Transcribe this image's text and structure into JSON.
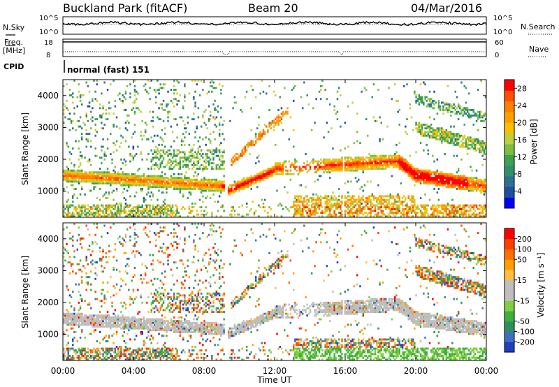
{
  "header": {
    "title": "Buckland Park (fitACF)",
    "beam": "Beam 20",
    "date": "04/Mar/2016"
  },
  "status_panels": {
    "nsky": {
      "label": "N.Sky",
      "ticks": [
        "10^5",
        "10^0"
      ]
    },
    "nsearch": {
      "label": "N.Search",
      "ticks": [
        "10^5",
        "10^0"
      ]
    },
    "freq": {
      "label_line1": "Freq.",
      "label_line2": "[MHz]",
      "ticks": [
        "18",
        "8"
      ]
    },
    "nave": {
      "label": "Nave",
      "ticks": [
        "60",
        "0"
      ]
    },
    "cpid": {
      "label": "CPID",
      "value": "normal (fast) 151"
    }
  },
  "power_panel": {
    "ylabel": "Slant Range [km]",
    "yticks": [
      "4000",
      "3000",
      "2000",
      "1000"
    ],
    "colorbar_label": "Power [dB]",
    "colorbar_ticks": [
      "28",
      "24",
      "20",
      "16",
      "12",
      "8",
      "4"
    ],
    "colors": [
      "#0000ff",
      "#1f4fa0",
      "#2f6f8f",
      "#2f8f6f",
      "#3fa04f",
      "#7fbf3f",
      "#bfcf3f",
      "#ffbf00",
      "#ff9f00",
      "#ff7f00",
      "#ff4f00",
      "#ff0000"
    ]
  },
  "velocity_panel": {
    "ylabel": "Slant Range [km]",
    "yticks": [
      "4000",
      "3000",
      "2000",
      "1000"
    ],
    "colorbar_label": "Velocity [m s⁻¹]",
    "colorbar_ticks": [
      "200",
      "100",
      "50",
      "15",
      "-15",
      "-50",
      "-100",
      "-200"
    ],
    "colors": [
      "#1f3fbf",
      "#3f6fbf",
      "#2f8f5f",
      "#3faf3f",
      "#7fcf3f",
      "#bebebe",
      "#bebebe",
      "#ffbf3f",
      "#ff9f00",
      "#ff6f00",
      "#ff3f00",
      "#ff0000"
    ]
  },
  "xaxis": {
    "label": "Time UT",
    "ticks": [
      "00:00",
      "04:00",
      "08:00",
      "12:00",
      "16:00",
      "20:00",
      "00:00"
    ]
  },
  "chart_data": {
    "type": "heatmap",
    "title": "Buckland Park (fitACF)",
    "x_range_hours_ut": [
      0,
      24
    ],
    "y_range_km": [
      180,
      4500
    ],
    "panels": [
      "N.Sky / N.Search",
      "Freq. / Nave",
      "CPID",
      "Power [dB]",
      "Velocity [m s⁻¹]"
    ],
    "power_scale_db": [
      0,
      30
    ],
    "velocity_scale_ms": [
      -250,
      250
    ],
    "grid": false
  }
}
